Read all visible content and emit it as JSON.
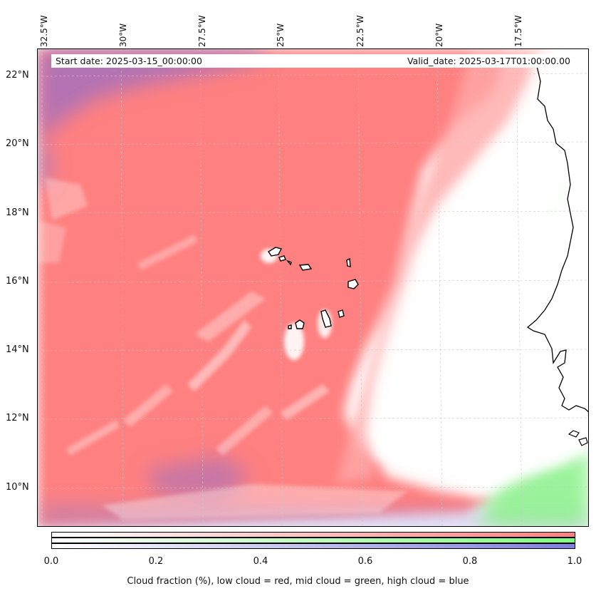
{
  "map": {
    "lon_labels": [
      "32.5°W",
      "30°W",
      "27.5°W",
      "25°W",
      "22.5°W",
      "20°W",
      "17.5°W"
    ],
    "lat_labels": [
      "22°N",
      "20°N",
      "18°N",
      "16°N",
      "14°N",
      "12°N",
      "10°N"
    ],
    "extent": {
      "lon": [
        -33.0,
        -15.5
      ],
      "lat": [
        8.9,
        22.8
      ]
    },
    "start_date": "Start date: 2025-03-15_00:00:00",
    "valid_date": "Valid_date: 2025-03-17T01:00:00.00",
    "layers": {
      "low_cloud_color": "#ff7f7f",
      "mid_cloud_color": "#80f080",
      "high_cloud_color": "#8a7fd8"
    },
    "features": [
      "Cape Verde islands",
      "West African coastline"
    ]
  },
  "colorbar": {
    "ticks": [
      "0.0",
      "0.2",
      "0.4",
      "0.6",
      "0.8",
      "1.0"
    ],
    "range": [
      0.0,
      1.0
    ],
    "caption": "Cloud fraction (%), low cloud = red, mid cloud = green, high cloud = blue",
    "strips": [
      "red",
      "green",
      "blue"
    ]
  }
}
